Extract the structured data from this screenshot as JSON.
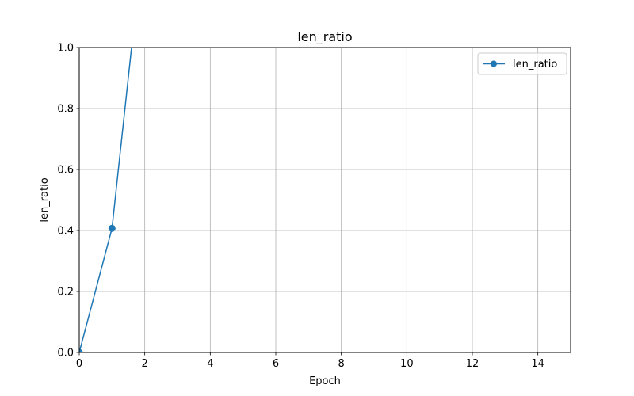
{
  "chart_data": {
    "type": "line",
    "title": "len_ratio",
    "xlabel": "Epoch",
    "ylabel": "len_ratio",
    "xlim": [
      0,
      15
    ],
    "ylim": [
      0,
      1.0
    ],
    "xticks": [
      "0",
      "2",
      "4",
      "6",
      "8",
      "10",
      "12",
      "14"
    ],
    "yticks": [
      "0.0",
      "0.2",
      "0.4",
      "0.6",
      "0.8",
      "1.0"
    ],
    "grid": true,
    "legend_position": "upper right",
    "series": [
      {
        "name": "len_ratio",
        "color": "#1f77b4",
        "marker": "circle",
        "x": [
          0,
          1,
          2
        ],
        "y": [
          0.0,
          0.407,
          1.4
        ]
      }
    ]
  }
}
